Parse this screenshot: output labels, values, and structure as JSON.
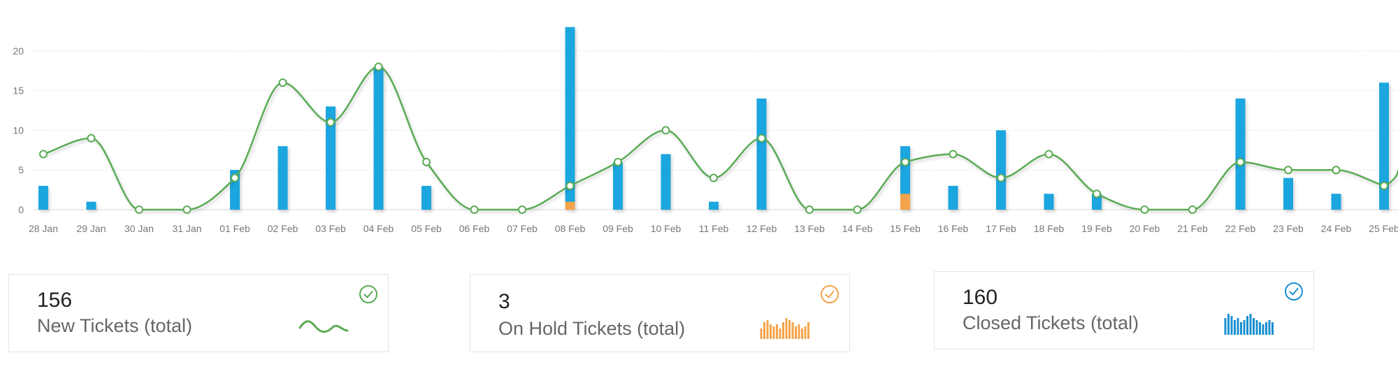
{
  "chart_data": {
    "type": "bar",
    "categories": [
      "28 Jan",
      "29 Jan",
      "30 Jan",
      "31 Jan",
      "01 Feb",
      "02 Feb",
      "03 Feb",
      "04 Feb",
      "05 Feb",
      "06 Feb",
      "07 Feb",
      "08 Feb",
      "09 Feb",
      "10 Feb",
      "11 Feb",
      "12 Feb",
      "13 Feb",
      "14 Feb",
      "15 Feb",
      "16 Feb",
      "17 Feb",
      "18 Feb",
      "19 Feb",
      "20 Feb",
      "21 Feb",
      "22 Feb",
      "23 Feb",
      "24 Feb",
      "25 Feb"
    ],
    "series": [
      {
        "type": "bar",
        "color": "#1aa6df",
        "values": [
          3,
          1,
          0,
          0,
          5,
          8,
          13,
          18,
          3,
          0,
          0,
          23,
          6,
          7,
          1,
          14,
          0,
          0,
          8,
          3,
          10,
          2,
          2,
          0,
          0,
          14,
          4,
          2,
          16
        ]
      },
      {
        "type": "bar",
        "color": "#f5a34a",
        "values": [
          0,
          0,
          0,
          0,
          0,
          0,
          0,
          0,
          0,
          0,
          0,
          1,
          0,
          0,
          0,
          0,
          0,
          0,
          2,
          0,
          0,
          0,
          0,
          0,
          0,
          0,
          0,
          0,
          0
        ]
      },
      {
        "type": "line",
        "color": "#5aab54",
        "values": [
          7,
          9,
          0,
          0,
          4,
          16,
          11,
          18,
          6,
          0,
          0,
          3,
          6,
          10,
          4,
          9,
          0,
          0,
          6,
          7,
          4,
          7,
          2,
          0,
          0,
          6,
          5,
          5,
          3
        ]
      }
    ],
    "yticks": [
      0,
      5,
      10,
      15,
      20
    ],
    "ylim": [
      0,
      23
    ],
    "grid": true,
    "legend": "none"
  },
  "cards": [
    {
      "value": "156",
      "label": "New Tickets (total)",
      "color": "#5aab54",
      "check_icon": "check-circle-icon",
      "spark_icon": "wave-sparkline-icon"
    },
    {
      "value": "3",
      "label": "On Hold Tickets (total)",
      "color": "#f5a34a",
      "check_icon": "check-circle-icon",
      "spark_icon": "bar-sparkline-icon",
      "spark_values": [
        5,
        8,
        9,
        7,
        6,
        7,
        5,
        8,
        10,
        9,
        8,
        6,
        7,
        5,
        6,
        8
      ]
    },
    {
      "value": "160",
      "label": "Closed Tickets (total)",
      "color": "#1a8fd0",
      "check_icon": "check-circle-icon",
      "spark_icon": "bar-sparkline-icon",
      "spark_values": [
        8,
        10,
        9,
        7,
        8,
        6,
        7,
        9,
        10,
        8,
        7,
        6,
        5,
        6,
        7,
        6
      ]
    }
  ]
}
